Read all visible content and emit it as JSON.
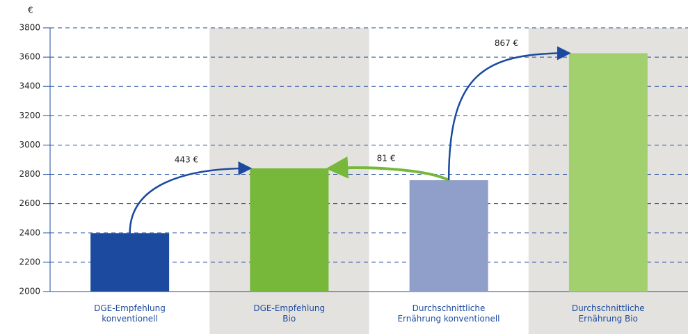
{
  "chart_data": {
    "type": "bar",
    "y_label": "€",
    "categories": [
      "DGE-Empfehlung\nkonventionell",
      "DGE-Empfehlung\nBio",
      "Durchschnittliche\nErnährung konventionell",
      "Durchschnittliche\nErnährung Bio"
    ],
    "values": [
      2398,
      2841,
      2760,
      3627
    ],
    "colors": [
      "#1b4a9f",
      "#77b83b",
      "#8f9fc9",
      "#a3d06f"
    ],
    "ylim": [
      2000,
      3800
    ],
    "yticks": [
      2000,
      2200,
      2400,
      2600,
      2800,
      3000,
      3200,
      3400,
      3600,
      3800
    ],
    "grid": true,
    "annotations": [
      "443 €",
      "81 €",
      "867 €"
    ]
  }
}
